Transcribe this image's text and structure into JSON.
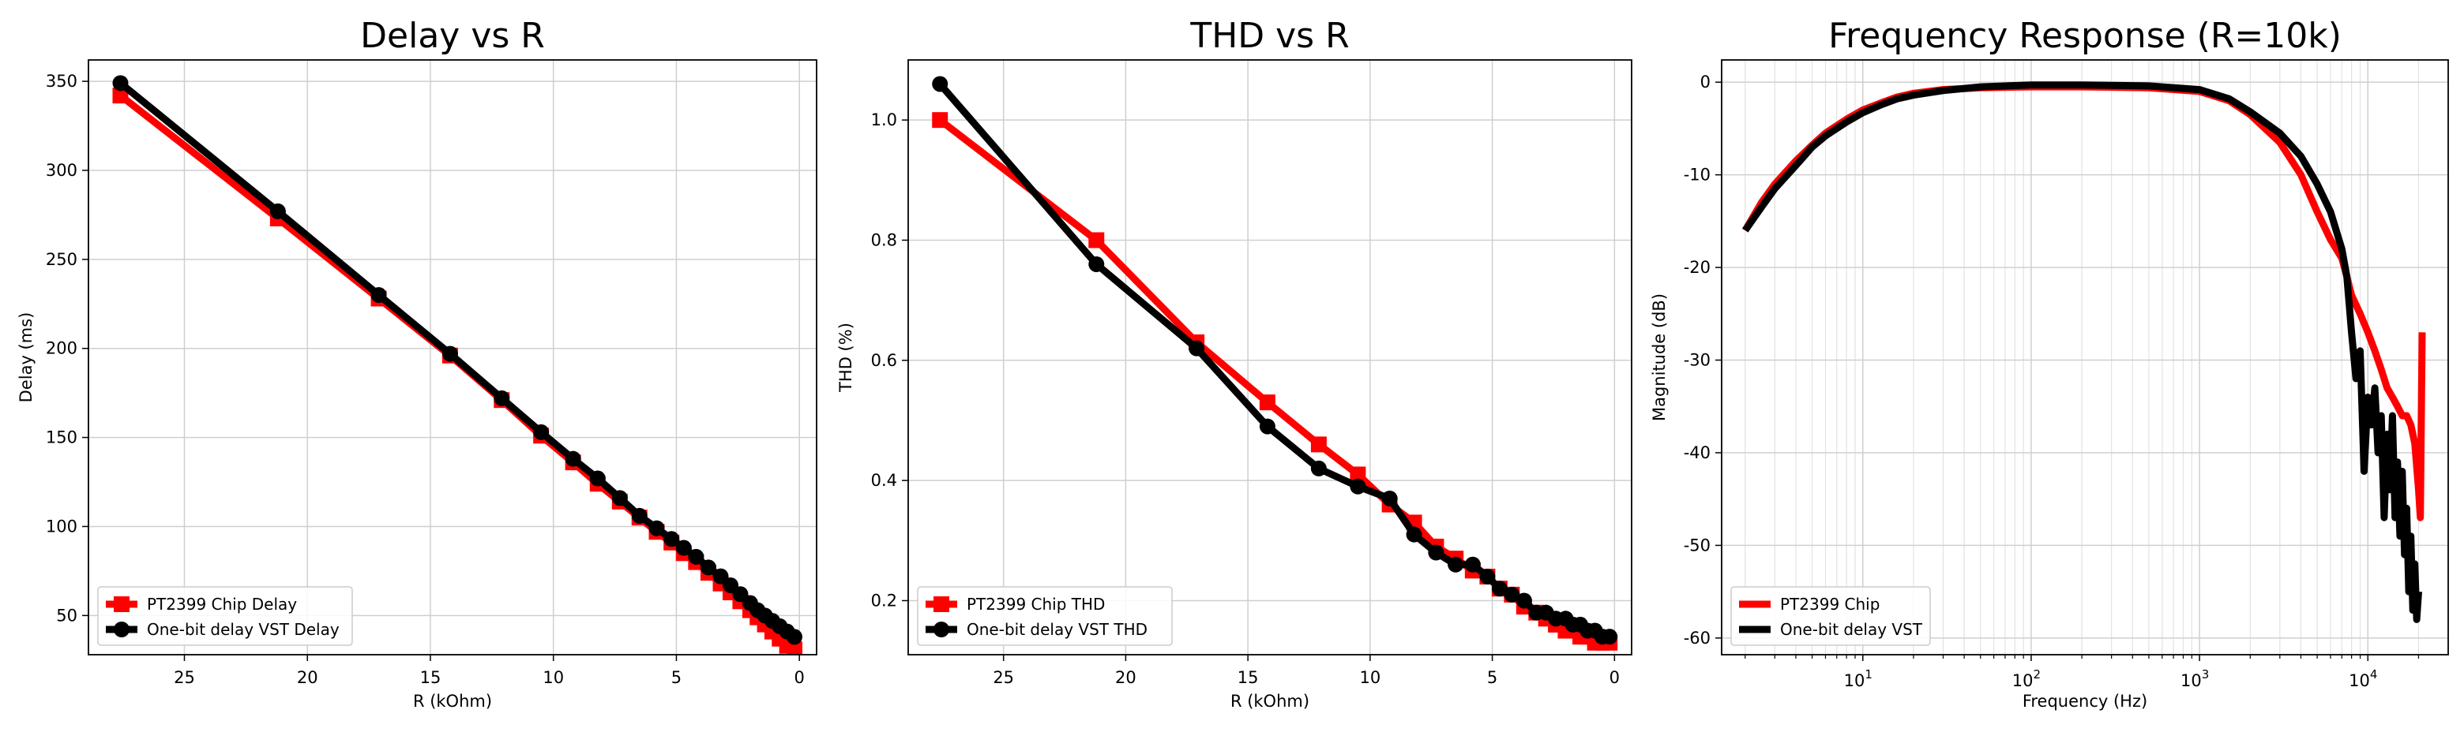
{
  "chart_data": [
    {
      "type": "line",
      "title": "Delay vs R",
      "xlabel": "R (kOhm)",
      "ylabel": "Delay (ms)",
      "x_scale": "linear",
      "x_inverted": true,
      "xlim": [
        28.9,
        -0.7
      ],
      "ylim": [
        28,
        362
      ],
      "xticks": [
        25,
        20,
        15,
        10,
        5,
        0
      ],
      "yticks": [
        50,
        100,
        150,
        200,
        250,
        300,
        350
      ],
      "grid": true,
      "legend_location": "lower left",
      "series": [
        {
          "name": "PT2399 Chip Delay",
          "color": "#ff0000",
          "marker": "square",
          "x": [
            27.6,
            21.2,
            17.1,
            14.2,
            12.1,
            10.5,
            9.2,
            8.2,
            7.3,
            6.5,
            5.8,
            5.2,
            4.7,
            4.2,
            3.7,
            3.2,
            2.8,
            2.4,
            2.0,
            1.7,
            1.4,
            1.1,
            0.8,
            0.5,
            0.2
          ],
          "y": [
            342,
            273,
            228,
            196,
            171,
            151,
            136,
            124,
            114,
            105,
            97,
            91,
            85,
            80,
            74,
            68,
            63,
            58,
            53,
            49,
            45,
            41,
            37,
            33,
            31
          ]
        },
        {
          "name": "One-bit delay VST Delay",
          "color": "#000000",
          "marker": "circle",
          "x": [
            27.6,
            21.2,
            17.1,
            14.2,
            12.1,
            10.5,
            9.2,
            8.2,
            7.3,
            6.5,
            5.8,
            5.2,
            4.7,
            4.2,
            3.7,
            3.2,
            2.8,
            2.4,
            2.0,
            1.7,
            1.4,
            1.1,
            0.8,
            0.5,
            0.2
          ],
          "y": [
            349,
            277,
            230,
            197,
            172,
            153,
            138,
            127,
            116,
            106,
            99,
            93,
            88,
            83,
            77,
            72,
            67,
            62,
            57,
            53,
            50,
            47,
            44,
            41,
            38
          ]
        }
      ]
    },
    {
      "type": "line",
      "title": "THD vs R",
      "xlabel": "R (kOhm)",
      "ylabel": "THD (%)",
      "x_scale": "linear",
      "x_inverted": true,
      "xlim": [
        28.9,
        -0.7
      ],
      "ylim": [
        0.11,
        1.1
      ],
      "xticks": [
        25,
        20,
        15,
        10,
        5,
        0
      ],
      "yticks": [
        0.2,
        0.4,
        0.6,
        0.8,
        1.0
      ],
      "grid": true,
      "legend_location": "lower left",
      "series": [
        {
          "name": "PT2399 Chip THD",
          "color": "#ff0000",
          "marker": "square",
          "x": [
            27.6,
            21.2,
            17.1,
            14.2,
            12.1,
            10.5,
            9.2,
            8.2,
            7.3,
            6.5,
            5.8,
            5.2,
            4.7,
            4.2,
            3.7,
            3.2,
            2.8,
            2.4,
            2.0,
            1.7,
            1.4,
            1.1,
            0.8,
            0.5,
            0.2
          ],
          "y": [
            1.0,
            0.8,
            0.63,
            0.53,
            0.46,
            0.41,
            0.36,
            0.33,
            0.29,
            0.27,
            0.25,
            0.24,
            0.22,
            0.21,
            0.19,
            0.18,
            0.17,
            0.16,
            0.15,
            0.15,
            0.14,
            0.14,
            0.13,
            0.13,
            0.13
          ]
        },
        {
          "name": "One-bit delay VST THD",
          "color": "#000000",
          "marker": "circle",
          "x": [
            27.6,
            21.2,
            17.1,
            14.2,
            12.1,
            10.5,
            9.2,
            8.2,
            7.3,
            6.5,
            5.8,
            5.2,
            4.7,
            4.2,
            3.7,
            3.2,
            2.8,
            2.4,
            2.0,
            1.7,
            1.4,
            1.1,
            0.8,
            0.5,
            0.2
          ],
          "y": [
            1.06,
            0.76,
            0.62,
            0.49,
            0.42,
            0.39,
            0.37,
            0.31,
            0.28,
            0.26,
            0.26,
            0.24,
            0.22,
            0.21,
            0.2,
            0.18,
            0.18,
            0.17,
            0.17,
            0.16,
            0.16,
            0.15,
            0.15,
            0.14,
            0.14
          ]
        }
      ]
    },
    {
      "type": "line",
      "title": "Frequency Response (R=10k)",
      "xlabel": "Frequency (Hz)",
      "ylabel": "Magnitude (dB)",
      "x_scale": "log",
      "xlim": [
        1.45,
        30000
      ],
      "ylim": [
        -61.8,
        2.4
      ],
      "xticks": [
        10,
        100,
        1000,
        10000
      ],
      "xtick_labels": [
        {
          "base": "10",
          "exp": "1"
        },
        {
          "base": "10",
          "exp": "2"
        },
        {
          "base": "10",
          "exp": "3"
        },
        {
          "base": "10",
          "exp": "4"
        }
      ],
      "yticks": [
        0,
        -10,
        -20,
        -30,
        -40,
        -50,
        -60
      ],
      "grid": true,
      "legend_location": "lower left",
      "series": [
        {
          "name": "PT2399 Chip",
          "color": "#ff0000",
          "x": [
            2,
            2.5,
            3,
            4,
            5,
            6,
            8,
            10,
            13,
            16,
            20,
            30,
            50,
            100,
            200,
            500,
            1000,
            1500,
            2000,
            3000,
            4000,
            5000,
            6000,
            7000,
            7500,
            8000,
            9000,
            10000,
            11000,
            12000,
            13000,
            14000,
            15000,
            16000,
            17000,
            18000,
            19000,
            20000,
            20500,
            21000
          ],
          "y": [
            -16,
            -13,
            -11,
            -8.5,
            -6.8,
            -5.5,
            -4,
            -3,
            -2.2,
            -1.6,
            -1.2,
            -0.8,
            -0.6,
            -0.5,
            -0.5,
            -0.6,
            -1,
            -2,
            -3.5,
            -6.5,
            -10,
            -14,
            -17,
            -19,
            -21,
            -23,
            -25,
            -27,
            -29,
            -31,
            -33,
            -34,
            -35,
            -36,
            -36,
            -37,
            -39,
            -44,
            -47,
            -27
          ]
        },
        {
          "name": "One-bit delay VST",
          "color": "#000000",
          "x": [
            2,
            2.5,
            3,
            4,
            5,
            6,
            8,
            10,
            13,
            16,
            20,
            30,
            50,
            100,
            200,
            500,
            1000,
            1500,
            2000,
            3000,
            4000,
            5000,
            6000,
            7000,
            7500,
            8000,
            8500,
            9000,
            9500,
            10000,
            10500,
            11000,
            11500,
            12000,
            12500,
            13000,
            13500,
            14000,
            14500,
            15000,
            15500,
            16000,
            16500,
            17000,
            17500,
            18000,
            18500,
            19000,
            19500,
            20000
          ],
          "y": [
            -16,
            -13.5,
            -11.5,
            -9,
            -7,
            -5.8,
            -4.3,
            -3.3,
            -2.4,
            -1.8,
            -1.4,
            -0.9,
            -0.5,
            -0.3,
            -0.3,
            -0.4,
            -0.8,
            -1.8,
            -3.2,
            -5.5,
            -8,
            -11,
            -14,
            -18,
            -21,
            -27,
            -32,
            -29,
            -42,
            -34,
            -37,
            -33,
            -40,
            -36,
            -47,
            -38,
            -44,
            -36,
            -47,
            -41,
            -49,
            -42,
            -51,
            -46,
            -55,
            -49,
            -57,
            -52,
            -58,
            -55
          ]
        }
      ]
    }
  ]
}
